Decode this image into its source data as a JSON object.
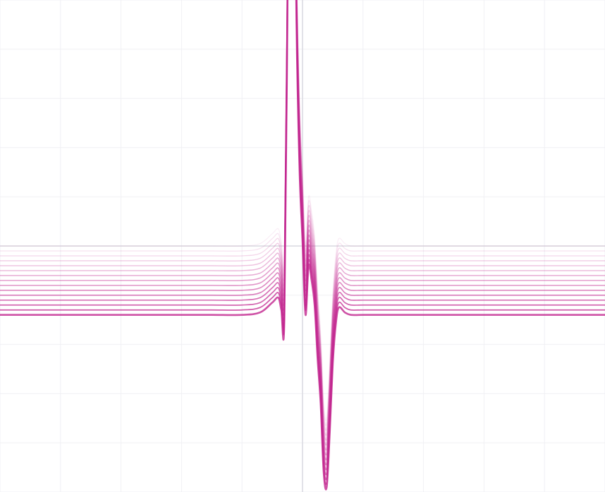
{
  "chart_data": {
    "type": "line",
    "title": "",
    "xlabel": "",
    "ylabel": "",
    "xlim": [
      -5,
      5
    ],
    "ylim": [
      -5,
      5
    ],
    "grid": true,
    "axes_visible": true,
    "tick_labels_visible": false,
    "legend": "none",
    "series_count": 15,
    "series_offset_step": -0.1,
    "series_color": "#c2268f",
    "grid_color": "#f0f0f4",
    "axis_color": "#d9d9e0",
    "x": [
      -5.0,
      -4.5,
      -4.0,
      -3.5,
      -3.0,
      -2.5,
      -2.0,
      -1.5,
      -1.0,
      -0.7,
      -0.5,
      -0.4,
      -0.35,
      -0.3,
      -0.25,
      -0.2,
      -0.15,
      -0.1,
      -0.05,
      0.0,
      0.05,
      0.1,
      0.15,
      0.2,
      0.25,
      0.3,
      0.35,
      0.4,
      0.45,
      0.5,
      0.55,
      0.6,
      0.7,
      0.8,
      1.0,
      1.5,
      2.0,
      3.0,
      4.0,
      5.0
    ],
    "base_y": [
      0.0,
      0.0,
      0.0,
      0.0,
      0.0,
      0.0,
      0.0,
      0.0,
      0.0,
      0.05,
      0.25,
      0.35,
      0.1,
      -0.1,
      6.0,
      14.0,
      12.0,
      6.0,
      3.0,
      1.5,
      0.0,
      1.0,
      0.7,
      0.2,
      -0.9,
      -1.8,
      -3.2,
      -3.5,
      -2.4,
      -1.0,
      -0.2,
      0.15,
      0.05,
      0.0,
      0.0,
      0.0,
      0.0,
      0.0,
      0.0,
      0.0
    ],
    "series": [
      {
        "values_offset": 0.0
      },
      {
        "values_offset": -0.1
      },
      {
        "values_offset": -0.2
      },
      {
        "values_offset": -0.3
      },
      {
        "values_offset": -0.4
      },
      {
        "values_offset": -0.5
      },
      {
        "values_offset": -0.6
      },
      {
        "values_offset": -0.7
      },
      {
        "values_offset": -0.8
      },
      {
        "values_offset": -0.9
      },
      {
        "values_offset": -1.0
      },
      {
        "values_offset": -1.1
      },
      {
        "values_offset": -1.2
      },
      {
        "values_offset": -1.3
      },
      {
        "values_offset": -1.4
      }
    ]
  }
}
